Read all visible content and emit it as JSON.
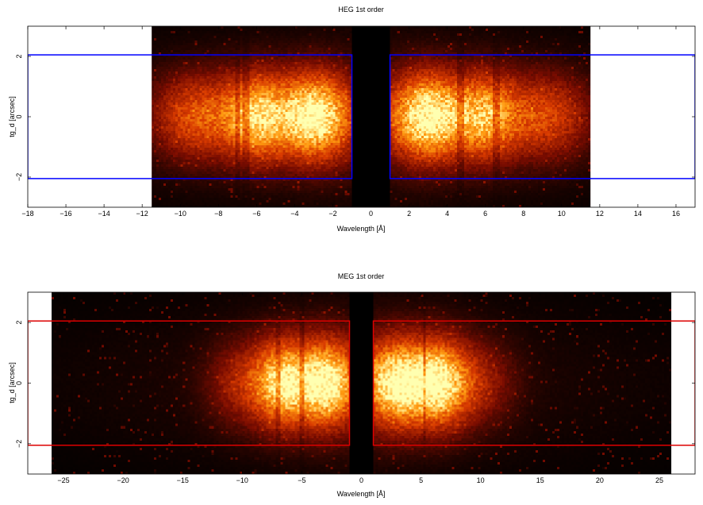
{
  "chart_data": [
    {
      "type": "heatmap",
      "title": "HEG 1st order",
      "xlabel": "Wavelength [Å]",
      "ylabel": "tg_d [arcsec]",
      "xlim": [
        -18,
        17
      ],
      "ylim": [
        -3,
        3
      ],
      "x_ticks": [
        -18,
        -16,
        -14,
        -12,
        -10,
        -8,
        -6,
        -4,
        -2,
        0,
        2,
        4,
        6,
        8,
        10,
        12,
        14,
        16
      ],
      "y_ticks": [
        -2,
        0,
        2
      ],
      "data_extent_x": [
        -11.5,
        11.5
      ],
      "dark_gap_x": [
        -1.0,
        1.0
      ],
      "colormap": [
        "#000000",
        "#7a0c00",
        "#d83a00",
        "#ff9a10",
        "#ffffb0"
      ],
      "box_color": "#0000ff",
      "extraction_boxes": [
        {
          "x": [
            -18,
            -1.0
          ],
          "y": [
            -2.05,
            2.05
          ]
        },
        {
          "x": [
            1.0,
            17
          ],
          "y": [
            -2.05,
            2.05
          ]
        }
      ],
      "emission_peaks": [
        {
          "x": -3.0,
          "intensity": 1.0,
          "width": 1.3
        },
        {
          "x": -6.0,
          "intensity": 0.75,
          "width": 1.1
        },
        {
          "x": -9.0,
          "intensity": 0.4,
          "width": 1.5
        },
        {
          "x": 3.0,
          "intensity": 1.0,
          "width": 1.3
        },
        {
          "x": 6.0,
          "intensity": 0.65,
          "width": 1.1
        },
        {
          "x": 9.0,
          "intensity": 0.35,
          "width": 1.5
        }
      ],
      "cross_dispersion_fwhm": 1.6,
      "absorption_lines": [
        -7.0,
        -6.6,
        4.7,
        6.6
      ]
    },
    {
      "type": "heatmap",
      "title": "MEG 1st order",
      "xlabel": "Wavelength [Å]",
      "ylabel": "tg_d [arcsec]",
      "xlim": [
        -28,
        28
      ],
      "ylim": [
        -3,
        3
      ],
      "x_ticks": [
        -25,
        -20,
        -15,
        -10,
        -5,
        0,
        5,
        10,
        15,
        20,
        25
      ],
      "y_ticks": [
        -2,
        0,
        2
      ],
      "data_extent_x": [
        -26,
        26
      ],
      "dark_gap_x": [
        -1.0,
        1.0
      ],
      "colormap": [
        "#000000",
        "#7a0c00",
        "#d83a00",
        "#ff9a10",
        "#ffffb0"
      ],
      "box_color": "#dd0000",
      "extraction_boxes": [
        {
          "x": [
            -28,
            -1.0
          ],
          "y": [
            -2.05,
            2.05
          ]
        },
        {
          "x": [
            1.0,
            28
          ],
          "y": [
            -2.05,
            2.05
          ]
        }
      ],
      "emission_peaks": [
        {
          "x": -3.0,
          "intensity": 1.0,
          "width": 1.6
        },
        {
          "x": -6.5,
          "intensity": 0.8,
          "width": 1.5
        },
        {
          "x": -9.5,
          "intensity": 0.25,
          "width": 2.0
        },
        {
          "x": 3.0,
          "intensity": 1.0,
          "width": 1.8
        },
        {
          "x": 6.5,
          "intensity": 0.85,
          "width": 1.6
        },
        {
          "x": 9.5,
          "intensity": 0.2,
          "width": 2.0
        }
      ],
      "cross_dispersion_fwhm": 1.6,
      "absorption_lines": [
        -7.0,
        -5.0,
        5.3
      ]
    }
  ]
}
